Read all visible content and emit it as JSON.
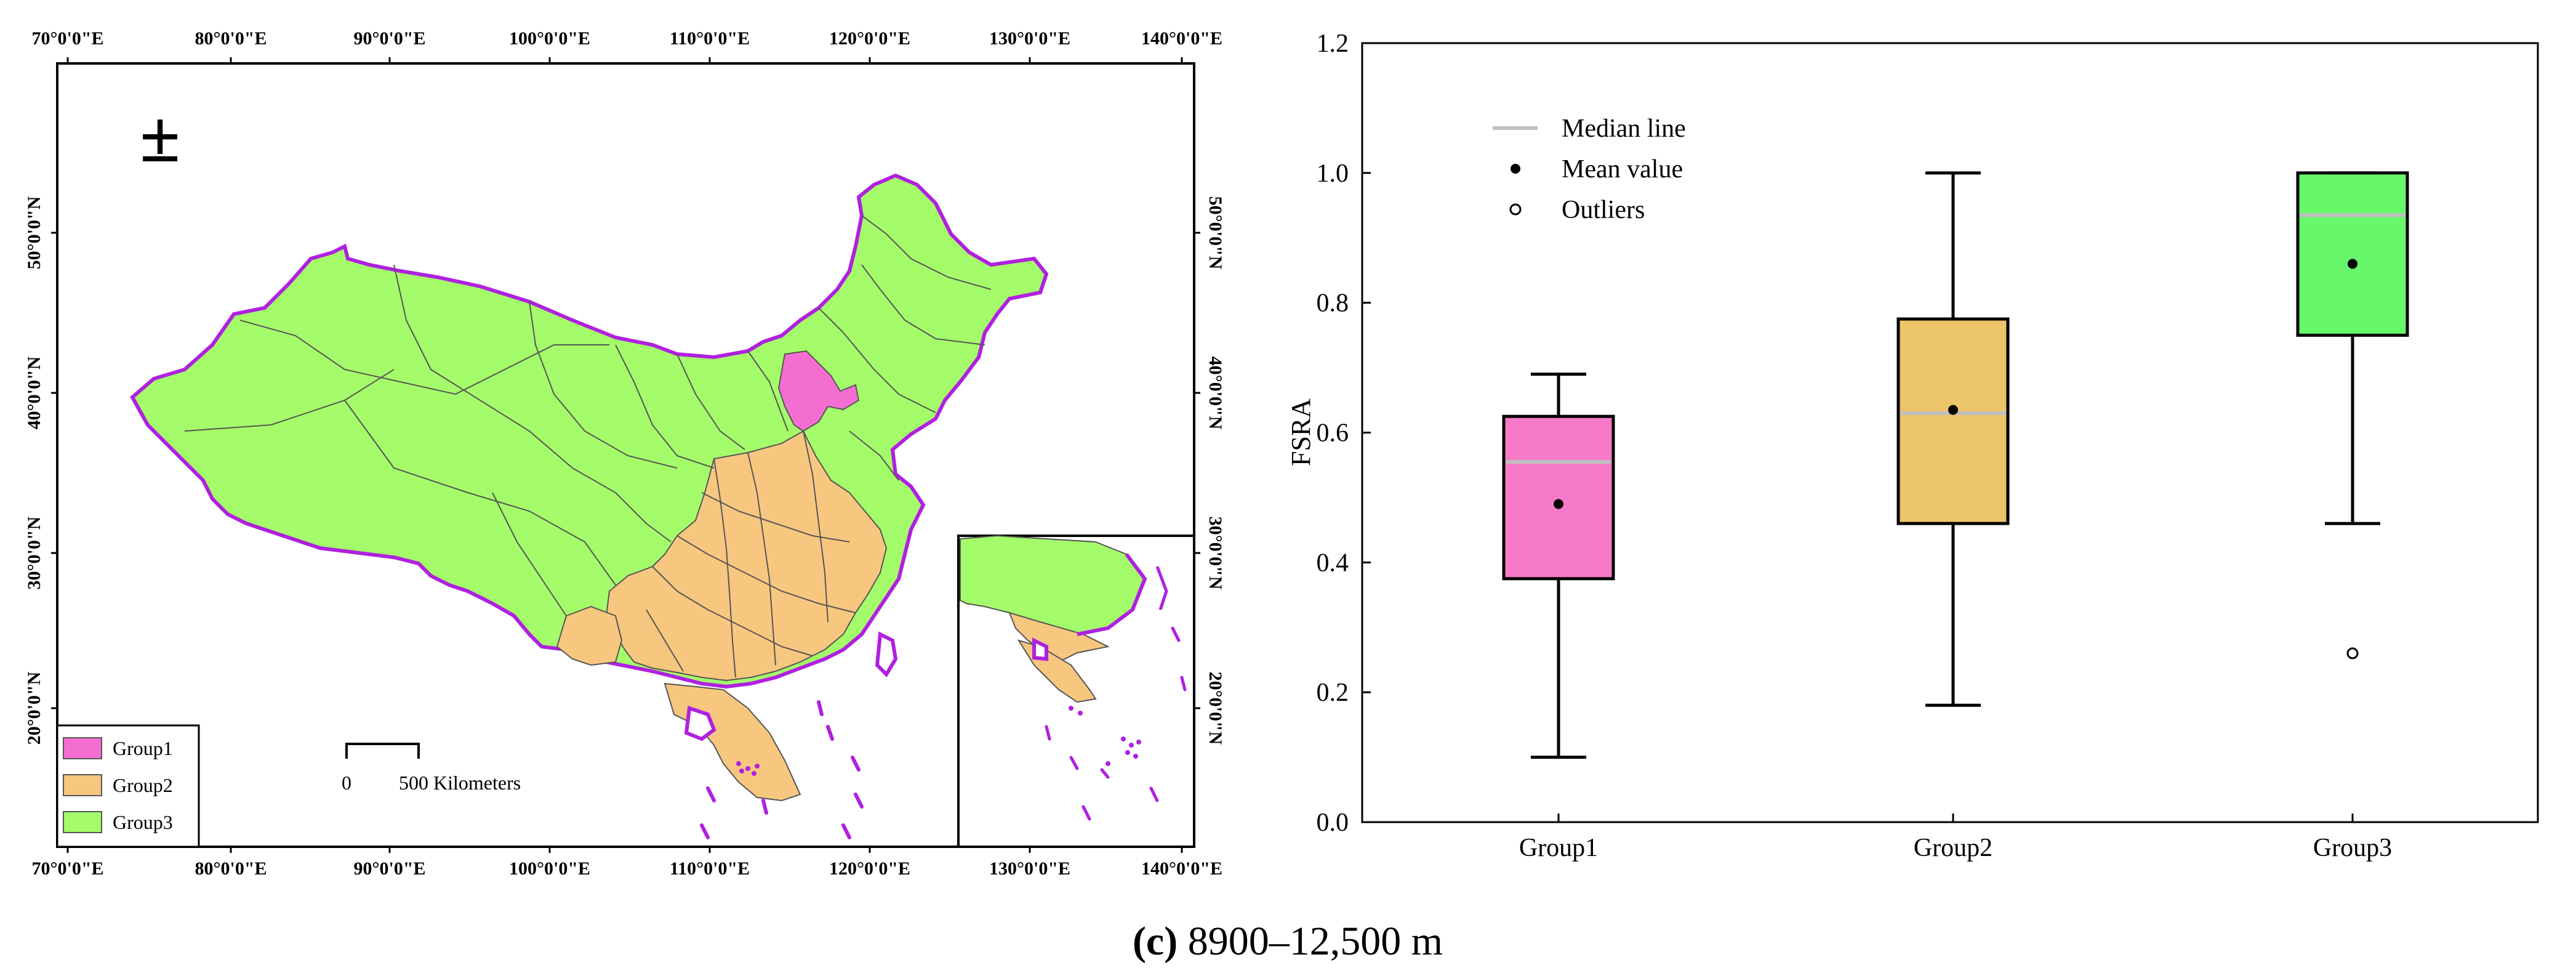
{
  "map": {
    "top_lon_labels": [
      "70°0'0\"E",
      "80°0'0\"E",
      "90°0'0\"E",
      "100°0'0\"E",
      "110°0'0\"E",
      "120°0'0\"E",
      "130°0'0\"E",
      "140°0'0\"E"
    ],
    "bottom_lon_labels": [
      "70°0'0\"E",
      "80°0'0\"E",
      "90°0'0\"E",
      "100°0'0\"E",
      "110°0'0\"E",
      "120°0'0\"E",
      "130°0'0\"E",
      "140°0'0\"E"
    ],
    "left_lat_labels": [
      "50°0'0\"N",
      "40°0'0\"N",
      "30°0'0\"N",
      "20°0'0\"N"
    ],
    "right_lat_labels": [
      "50°0'0\"N",
      "40°0'0\"N",
      "30°0'0\"N",
      "20°0'0\"N"
    ],
    "north_symbol": "±",
    "legend": [
      {
        "label": "Group1",
        "color": "#f46ed2"
      },
      {
        "label": "Group2",
        "color": "#f7c77f"
      },
      {
        "label": "Group3",
        "color": "#a4fc6a"
      }
    ],
    "scale_bar": {
      "start": "0",
      "end": "500 Kilometers"
    },
    "boundary_color": "#b020e0"
  },
  "chart_data": {
    "type": "box",
    "title": "",
    "xlabel": "",
    "ylabel": "FSRA",
    "ylim": [
      0.0,
      1.2
    ],
    "yticks": [
      "0.0",
      "0.2",
      "0.4",
      "0.6",
      "0.8",
      "1.0",
      "1.2"
    ],
    "categories": [
      "Group1",
      "Group2",
      "Group3"
    ],
    "boxes": [
      {
        "name": "Group1",
        "min": 0.1,
        "q1": 0.375,
        "median": 0.555,
        "q3": 0.625,
        "max": 0.69,
        "mean": 0.49,
        "outliers": [],
        "color": "#f77ac8"
      },
      {
        "name": "Group2",
        "min": 0.18,
        "q1": 0.46,
        "median": 0.63,
        "q3": 0.775,
        "max": 1.0,
        "mean": 0.635,
        "outliers": [],
        "color": "#ecc56b"
      },
      {
        "name": "Group3",
        "min": 0.46,
        "q1": 0.75,
        "median": 0.935,
        "q3": 1.0,
        "max": 1.0,
        "mean": 0.86,
        "outliers": [
          0.26
        ],
        "color": "#66f76b"
      }
    ],
    "legend": [
      {
        "label": "Median line",
        "symbol": "line"
      },
      {
        "label": "Mean value",
        "symbol": "filled-dot"
      },
      {
        "label": "Outliers",
        "symbol": "open-dot"
      }
    ],
    "legend_position": "top-left",
    "median_color": "#c0c0c0"
  },
  "caption": {
    "letter": "(c)",
    "text": " 8900–12,500 m"
  }
}
